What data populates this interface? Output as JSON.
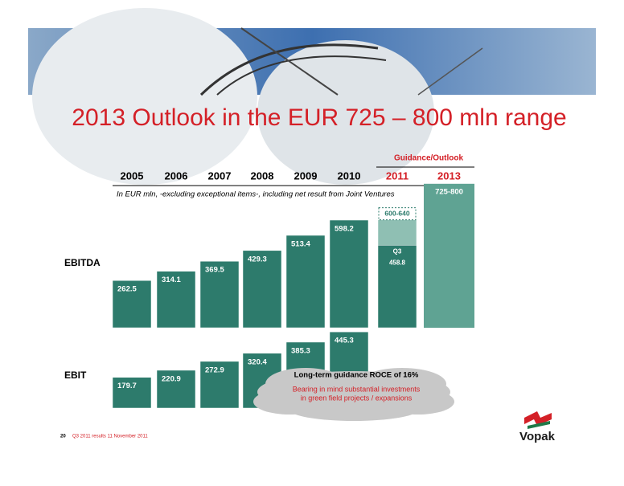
{
  "title": "2013 Outlook in the EUR 725 – 800 mln range",
  "footer": {
    "page": "20",
    "text": "Q3 2011 results   11 November 2011"
  },
  "logo": "Vopak",
  "chart_data": {
    "type": "bar",
    "subtitle": "In EUR mln, -excluding exceptional items-, including net result from Joint Ventures",
    "guidance_label": "Guidance/Outlook",
    "categories": [
      "2005",
      "2006",
      "2007",
      "2008",
      "2009",
      "2010",
      "2011",
      "2013"
    ],
    "series": [
      {
        "name": "EBITDA",
        "color": "#2d7b6c",
        "values": [
          262.5,
          314.1,
          369.5,
          429.3,
          513.4,
          598.2,
          458.8,
          null
        ]
      },
      {
        "name": "EBIT",
        "color": "#2d7b6c",
        "values": [
          179.7,
          220.9,
          272.9,
          320.4,
          385.3,
          445.3,
          null,
          null
        ]
      }
    ],
    "partial_label": "Q3",
    "guidance": [
      {
        "category": "2011",
        "low": 600,
        "high": 640,
        "label": "600-640"
      },
      {
        "category": "2013",
        "low": 725,
        "high": 800,
        "label": "725-800"
      }
    ],
    "note": {
      "heading": "Long-term guidance ROCE of 16%",
      "lines": [
        "Bearing in mind substantial investments",
        "in green field projects / expansions"
      ]
    }
  }
}
